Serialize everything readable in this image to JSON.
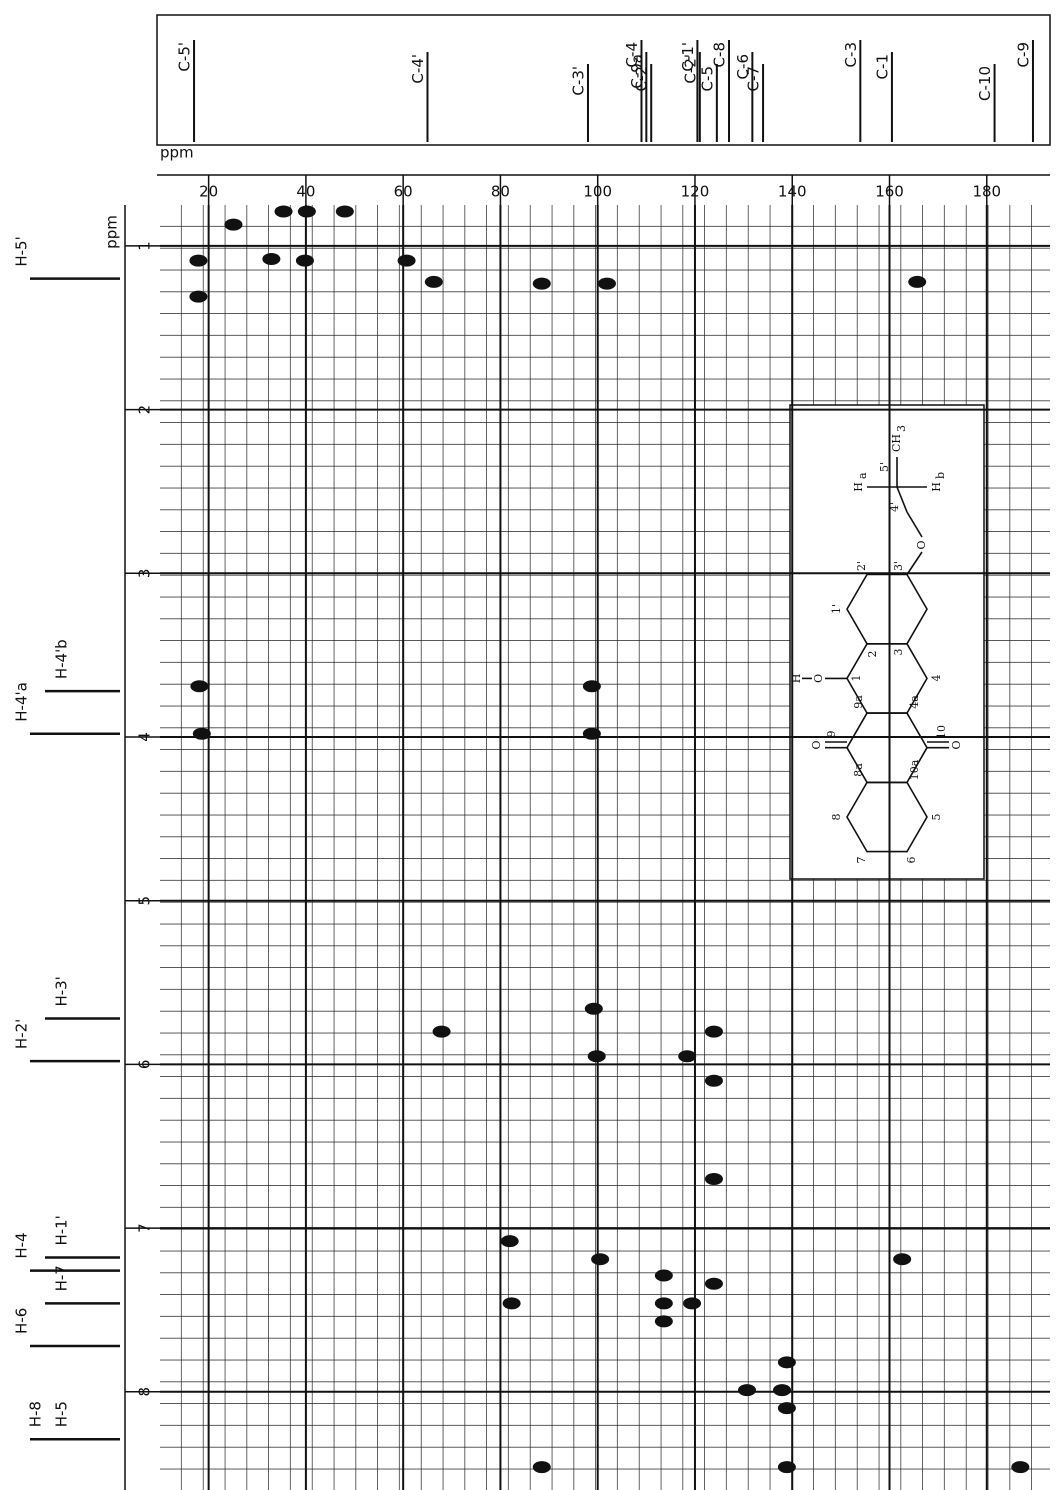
{
  "chart_data": {
    "type": "scatter",
    "x_label": "ppm",
    "y_label": "ppm",
    "x": [
      17.9,
      17.9,
      66.3,
      25.1,
      35.4,
      40.2,
      48.0,
      32.9,
      39.8,
      60.7,
      88.5,
      101.9,
      165.7,
      18.1,
      18.6,
      98.8,
      98.8,
      67.9,
      99.2,
      99.8,
      118.4,
      123.9,
      123.9,
      123.9,
      81.9,
      100.5,
      162.6,
      123.9,
      113.6,
      82.3,
      113.6,
      119.4,
      113.6,
      138.9,
      130.7,
      137.9,
      138.9,
      88.5,
      138.9,
      186.9
    ],
    "y": [
      1.09,
      1.31,
      1.22,
      0.87,
      0.79,
      0.79,
      0.79,
      1.08,
      1.09,
      1.09,
      1.23,
      1.23,
      1.22,
      3.69,
      3.98,
      3.69,
      3.98,
      5.8,
      5.66,
      5.95,
      5.95,
      5.8,
      6.1,
      6.7,
      7.08,
      7.19,
      7.19,
      7.34,
      7.29,
      7.46,
      7.46,
      7.46,
      7.57,
      7.82,
      7.99,
      7.99,
      8.1,
      8.46,
      8.46,
      8.46
    ],
    "color": "#111111",
    "xlim": [
      10,
      193
    ],
    "ylim": [
      0.75,
      8.6
    ],
    "xticks": [
      20,
      40,
      60,
      80,
      100,
      120,
      140,
      160,
      180
    ],
    "yticks": [
      1,
      2,
      3,
      4,
      5,
      6,
      7,
      8
    ],
    "grid": true,
    "carbon_peaks": {
      "labels": [
        "C-5'",
        "C-4'",
        "C-3'",
        "C-4",
        "C-9a",
        "C-2",
        "C-1'",
        "C-2'",
        "C-5",
        "C-8",
        "C-6",
        "C-7",
        "C-3",
        "C-1",
        "C-10",
        "C-9"
      ],
      "values": [
        17,
        65,
        98,
        109,
        110,
        111,
        120.5,
        121,
        124.5,
        127,
        131.8,
        134,
        154,
        160.5,
        181.6,
        189.5
      ]
    },
    "proton_peaks": {
      "labels": [
        "H-5'",
        "H-4'b",
        "H-4'a",
        "H-3'",
        "H-2'",
        "H-1'",
        "H-4",
        "H-7",
        "H-6",
        "H-5",
        "H-8"
      ],
      "values": [
        1.2,
        3.72,
        3.98,
        5.72,
        5.98,
        7.18,
        7.26,
        7.46,
        7.72,
        8.29,
        8.29
      ]
    }
  },
  "structure": {
    "labels": [
      "H",
      "O",
      "O",
      "O",
      "O",
      "H",
      "a",
      "H",
      "b",
      "CH",
      "3",
      "1",
      "2",
      "3",
      "4",
      "5",
      "6",
      "7",
      "8",
      "9",
      "10",
      "1'",
      "2'",
      "3'",
      "4'",
      "5'",
      "9a",
      "4a",
      "8a",
      "10a"
    ]
  }
}
